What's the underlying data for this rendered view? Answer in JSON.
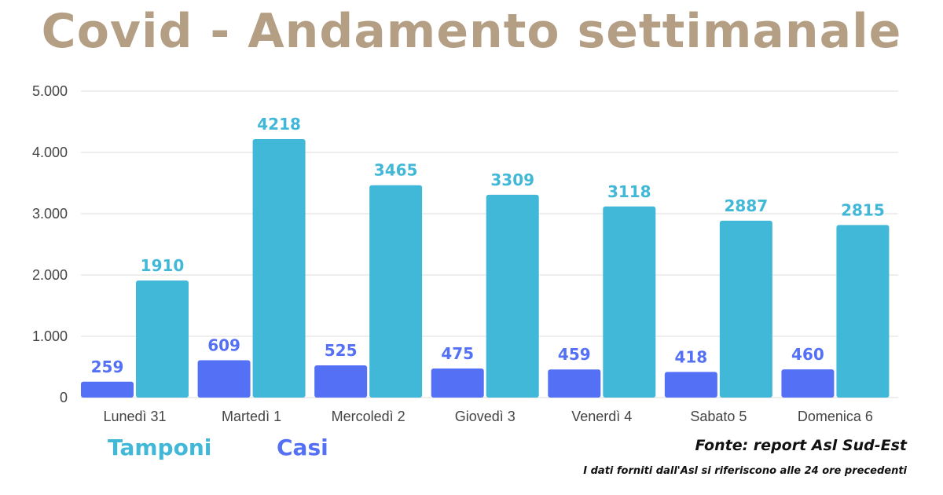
{
  "title": "Covid - Andamento settimanale",
  "legend": {
    "tamponi_label": "Tamponi",
    "casi_label": "Casi"
  },
  "source": "Fonte: report Asl Sud-Est",
  "note": "I dati forniti dall'Asl si riferiscono alle 24 ore precedenti",
  "colors": {
    "title": "#b49f85",
    "tamponi": "#42b8d8",
    "casi": "#5470f5",
    "grid": "#dddddd"
  },
  "chart_data": {
    "type": "bar",
    "categories": [
      "Lunedì 31",
      "Martedì 1",
      "Mercoledì 2",
      "Giovedì 3",
      "Venerdì 4",
      "Sabato 5",
      "Domenica 6"
    ],
    "series": [
      {
        "name": "Casi",
        "color": "#5470f5",
        "values": [
          259,
          609,
          525,
          475,
          459,
          418,
          460
        ]
      },
      {
        "name": "Tamponi",
        "color": "#42b8d8",
        "values": [
          1910,
          4218,
          3465,
          3309,
          3118,
          2887,
          2815
        ]
      }
    ],
    "y_ticks": [
      "0",
      "1.000",
      "2.000",
      "3.000",
      "4.000",
      "5.000"
    ],
    "ylim": [
      0,
      5000
    ],
    "grid": true
  }
}
